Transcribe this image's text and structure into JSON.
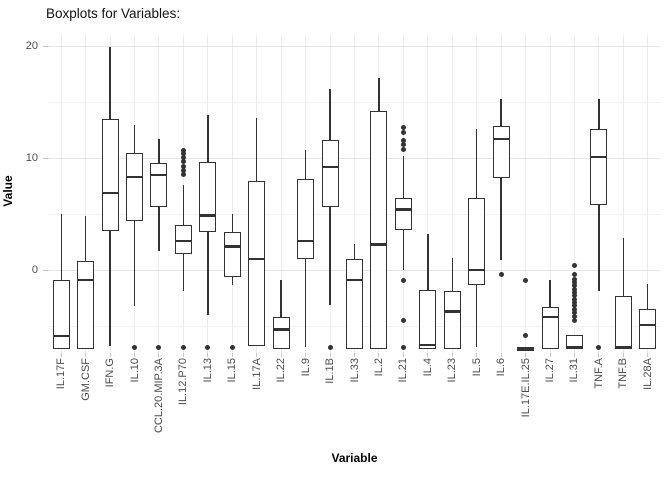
{
  "chart_data": {
    "type": "boxplot",
    "title": "Boxplots for Variables:",
    "xlabel": "Variable",
    "ylabel": "Value",
    "ylim": [
      -7.4,
      21.0
    ],
    "y_major_ticks": [
      0,
      10,
      20
    ],
    "y_minor_gridlines": [
      -5,
      5,
      15
    ],
    "grid": true,
    "legend": "none",
    "categories": [
      "IL.17F",
      "GM.CSF",
      "IFN.G",
      "IL.10",
      "CCL.20.MIP.3A",
      "IL.12.P70",
      "IL.13",
      "IL.15",
      "IL.17A",
      "IL.22",
      "IL.9",
      "IL.1B",
      "IL.33",
      "IL.2",
      "IL.21",
      "IL.4",
      "IL.23",
      "IL.5",
      "IL.6",
      "IL.17E.IL.25",
      "IL.27",
      "IL.31",
      "TNF.A",
      "TNF.B",
      "IL.28A"
    ],
    "series": [
      {
        "name": "IL.17F",
        "whisker_low": -7.0,
        "q1": -7.0,
        "median": -5.9,
        "q3": -0.9,
        "whisker_high": 5.0,
        "outliers": []
      },
      {
        "name": "GM.CSF",
        "whisker_low": -7.0,
        "q1": -7.0,
        "median": -0.9,
        "q3": 0.8,
        "whisker_high": 4.8,
        "outliers": []
      },
      {
        "name": "IFN.G",
        "whisker_low": -6.8,
        "q1": 3.5,
        "median": 6.9,
        "q3": 13.5,
        "whisker_high": 19.9,
        "outliers": []
      },
      {
        "name": "IL.10",
        "whisker_low": -3.2,
        "q1": 4.4,
        "median": 8.3,
        "q3": 10.5,
        "whisker_high": 13.0,
        "outliers": [
          -6.9
        ]
      },
      {
        "name": "CCL.20.MIP.3A",
        "whisker_low": 1.7,
        "q1": 5.6,
        "median": 8.5,
        "q3": 9.6,
        "whisker_high": 11.7,
        "outliers": [
          -6.9
        ]
      },
      {
        "name": "IL.12.P70",
        "whisker_low": -1.9,
        "q1": 1.4,
        "median": 2.6,
        "q3": 4.0,
        "whisker_high": 7.6,
        "outliers": [
          10.7,
          10.4,
          10.1,
          9.7,
          9.3,
          8.9,
          8.5,
          -6.9
        ]
      },
      {
        "name": "IL.13",
        "whisker_low": -4.0,
        "q1": 3.4,
        "median": 4.9,
        "q3": 9.7,
        "whisker_high": 13.9,
        "outliers": [
          -6.9
        ]
      },
      {
        "name": "IL.15",
        "whisker_low": -1.3,
        "q1": -0.6,
        "median": 2.1,
        "q3": 3.4,
        "whisker_high": 5.0,
        "outliers": [
          -6.9
        ]
      },
      {
        "name": "IL.17A",
        "whisker_low": -6.8,
        "q1": -6.8,
        "median": 1.0,
        "q3": 8.0,
        "whisker_high": 13.6,
        "outliers": []
      },
      {
        "name": "IL.22",
        "whisker_low": -7.0,
        "q1": -7.0,
        "median": -5.3,
        "q3": -4.2,
        "whisker_high": -0.9,
        "outliers": []
      },
      {
        "name": "IL.9",
        "whisker_low": -6.9,
        "q1": 1.0,
        "median": 2.6,
        "q3": 8.1,
        "whisker_high": 10.7,
        "outliers": []
      },
      {
        "name": "IL.1B",
        "whisker_low": -3.1,
        "q1": 5.6,
        "median": 9.2,
        "q3": 11.6,
        "whisker_high": 16.2,
        "outliers": [
          -6.9
        ]
      },
      {
        "name": "IL.33",
        "whisker_low": -7.0,
        "q1": -7.0,
        "median": -0.9,
        "q3": 1.0,
        "whisker_high": 2.3,
        "outliers": []
      },
      {
        "name": "IL.2",
        "whisker_low": -7.0,
        "q1": -7.0,
        "median": 2.3,
        "q3": 14.2,
        "whisker_high": 17.2,
        "outliers": []
      },
      {
        "name": "IL.21",
        "whisker_low": 0.0,
        "q1": 3.6,
        "median": 5.4,
        "q3": 6.4,
        "whisker_high": 10.2,
        "outliers": [
          12.7,
          12.3,
          11.6,
          11.2,
          10.8,
          -0.9,
          -4.5,
          -6.9
        ]
      },
      {
        "name": "IL.4",
        "whisker_low": -7.0,
        "q1": -7.0,
        "median": -6.7,
        "q3": -1.8,
        "whisker_high": 3.2,
        "outliers": []
      },
      {
        "name": "IL.23",
        "whisker_low": -7.0,
        "q1": -7.0,
        "median": -3.7,
        "q3": -1.9,
        "whisker_high": 1.1,
        "outliers": []
      },
      {
        "name": "IL.5",
        "whisker_low": -6.9,
        "q1": -1.3,
        "median": 0.0,
        "q3": 6.4,
        "whisker_high": 12.6,
        "outliers": []
      },
      {
        "name": "IL.6",
        "whisker_low": 0.9,
        "q1": 8.2,
        "median": 11.7,
        "q3": 12.9,
        "whisker_high": 15.3,
        "outliers": [
          -0.4
        ]
      },
      {
        "name": "IL.17E.IL.25",
        "whisker_low": -7.0,
        "q1": -7.0,
        "median": -7.0,
        "q3": -7.0,
        "whisker_high": -7.0,
        "outliers": [
          -0.9,
          -5.8
        ]
      },
      {
        "name": "IL.27",
        "whisker_low": -7.0,
        "q1": -7.0,
        "median": -4.2,
        "q3": -3.3,
        "whisker_high": -0.9,
        "outliers": []
      },
      {
        "name": "IL.31",
        "whisker_low": -7.0,
        "q1": -7.0,
        "median": -6.9,
        "q3": -5.8,
        "whisker_high": -5.8,
        "outliers": [
          0.4,
          -0.4,
          -0.8,
          -1.1,
          -1.4,
          -1.7,
          -2.0,
          -2.3,
          -2.6,
          -2.9,
          -3.2,
          -3.5,
          -3.8,
          -4.1,
          -4.5
        ]
      },
      {
        "name": "TNF.A",
        "whisker_low": -1.9,
        "q1": 5.8,
        "median": 10.1,
        "q3": 12.6,
        "whisker_high": 15.3,
        "outliers": [
          -6.9
        ]
      },
      {
        "name": "TNF.B",
        "whisker_low": -7.0,
        "q1": -7.0,
        "median": -6.9,
        "q3": -2.3,
        "whisker_high": 2.9,
        "outliers": []
      },
      {
        "name": "IL.28A",
        "whisker_low": -7.0,
        "q1": -7.0,
        "median": -4.9,
        "q3": -3.5,
        "whisker_high": -1.2,
        "outliers": []
      }
    ]
  },
  "colors": {
    "box_border": "#333333",
    "median": "#333333",
    "outlier": "#333333",
    "grid_major": "#e7e7e7",
    "grid_minor": "#f2f2f2",
    "grid_vertical": "#ececec",
    "axis_tick": "#c9c9c9",
    "tick_label": "#4d4d4d",
    "title": "#111111",
    "background": "#ffffff"
  }
}
